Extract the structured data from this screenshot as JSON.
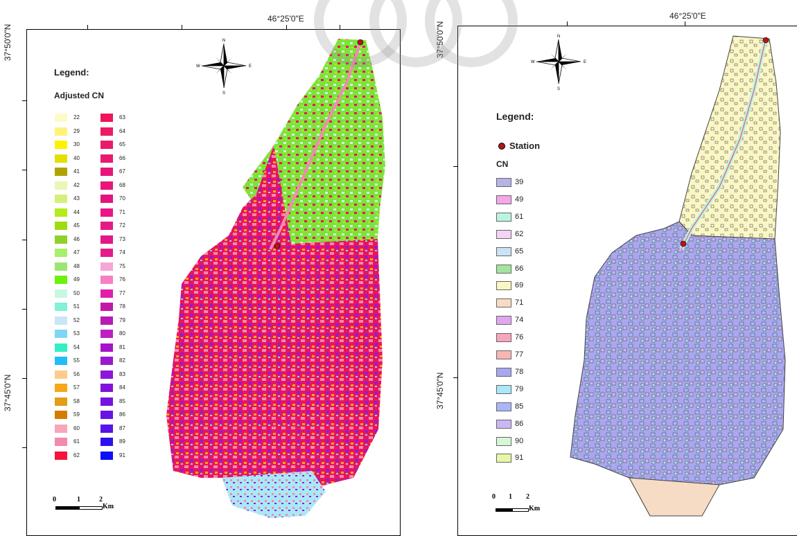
{
  "left_map": {
    "coord_lon": "46°25'0\"E",
    "coord_lat_top": "37°50'0\"N",
    "coord_lat_bottom": "37°45'0\"N",
    "legend_title": "Legend:",
    "legend_subtitle": "Adjusted CN",
    "classes_col1": [
      {
        "value": "22",
        "color": "#fefac8"
      },
      {
        "value": "29",
        "color": "#fef37a"
      },
      {
        "value": "30",
        "color": "#fdf200"
      },
      {
        "value": "40",
        "color": "#e3df00"
      },
      {
        "value": "41",
        "color": "#b0a300"
      },
      {
        "value": "42",
        "color": "#e8f7b3"
      },
      {
        "value": "43",
        "color": "#d4f07a"
      },
      {
        "value": "44",
        "color": "#b2ec1a"
      },
      {
        "value": "45",
        "color": "#9edc11"
      },
      {
        "value": "46",
        "color": "#8fd12c"
      },
      {
        "value": "47",
        "color": "#a8ef6b"
      },
      {
        "value": "48",
        "color": "#9be673"
      },
      {
        "value": "49",
        "color": "#6cf20c"
      },
      {
        "value": "50",
        "color": "#c7f7e0"
      },
      {
        "value": "51",
        "color": "#81f2d6"
      },
      {
        "value": "52",
        "color": "#c8e6f6"
      },
      {
        "value": "53",
        "color": "#7fd6f4"
      },
      {
        "value": "54",
        "color": "#32efc4"
      },
      {
        "value": "55",
        "color": "#23bdf8"
      },
      {
        "value": "56",
        "color": "#fdcc8a"
      },
      {
        "value": "57",
        "color": "#f7a71a"
      },
      {
        "value": "58",
        "color": "#e39d18"
      },
      {
        "value": "59",
        "color": "#d77b00"
      },
      {
        "value": "60",
        "color": "#f7a5ba"
      },
      {
        "value": "61",
        "color": "#f28ab0"
      },
      {
        "value": "62",
        "color": "#f4133a"
      }
    ],
    "classes_col2": [
      {
        "value": "63",
        "color": "#ef155b"
      },
      {
        "value": "64",
        "color": "#ec1a64"
      },
      {
        "value": "65",
        "color": "#ea1a6a"
      },
      {
        "value": "66",
        "color": "#e81a72"
      },
      {
        "value": "67",
        "color": "#e71579"
      },
      {
        "value": "68",
        "color": "#e71678"
      },
      {
        "value": "70",
        "color": "#e5137f"
      },
      {
        "value": "71",
        "color": "#eb1587"
      },
      {
        "value": "72",
        "color": "#e41b86"
      },
      {
        "value": "73",
        "color": "#e21788"
      },
      {
        "value": "74",
        "color": "#e41a8d"
      },
      {
        "value": "75",
        "color": "#f5a6d7"
      },
      {
        "value": "76",
        "color": "#f77fc6"
      },
      {
        "value": "77",
        "color": "#e01ea9"
      },
      {
        "value": "78",
        "color": "#c418a6"
      },
      {
        "value": "79",
        "color": "#b91ab4"
      },
      {
        "value": "80",
        "color": "#c01ec5"
      },
      {
        "value": "81",
        "color": "#a414cb"
      },
      {
        "value": "82",
        "color": "#9a19d0"
      },
      {
        "value": "83",
        "color": "#8e16d8"
      },
      {
        "value": "84",
        "color": "#8113d9"
      },
      {
        "value": "85",
        "color": "#7613e0"
      },
      {
        "value": "86",
        "color": "#6a12e5"
      },
      {
        "value": "87",
        "color": "#5713ea"
      },
      {
        "value": "89",
        "color": "#2c12ef"
      },
      {
        "value": "91",
        "color": "#0b10f6"
      }
    ],
    "scale_labels": [
      "0",
      "1",
      "2",
      "Km"
    ]
  },
  "right_map": {
    "coord_lon": "46°25'0\"E",
    "coord_lat_top": "37°50'0\"N",
    "coord_lat_bottom": "37°45'0\"N",
    "legend_title": "Legend:",
    "station_label": "Station",
    "cn_label": "CN",
    "classes": [
      {
        "value": "39",
        "color": "#b6b3e8"
      },
      {
        "value": "49",
        "color": "#f5a7e6"
      },
      {
        "value": "61",
        "color": "#b9f5e0"
      },
      {
        "value": "62",
        "color": "#f5d3f5"
      },
      {
        "value": "65",
        "color": "#cce3f5"
      },
      {
        "value": "66",
        "color": "#a3e4a0"
      },
      {
        "value": "69",
        "color": "#fbf7c4"
      },
      {
        "value": "71",
        "color": "#f6dcc4"
      },
      {
        "value": "74",
        "color": "#e0a7f0"
      },
      {
        "value": "76",
        "color": "#f7a7bd"
      },
      {
        "value": "77",
        "color": "#f8b7b2"
      },
      {
        "value": "78",
        "color": "#a8a7f0"
      },
      {
        "value": "79",
        "color": "#a8e9f8"
      },
      {
        "value": "85",
        "color": "#a9b7f7"
      },
      {
        "value": "86",
        "color": "#cbb7f2"
      },
      {
        "value": "90",
        "color": "#d6f7d5"
      },
      {
        "value": "91",
        "color": "#e6f7a7"
      }
    ],
    "scale_labels": [
      "0",
      "1",
      "2",
      "Km"
    ]
  },
  "compass": {
    "n": "N",
    "s": "S",
    "e": "E",
    "w": "W"
  },
  "colors": {
    "station": "#b01818",
    "boundary": "#444444",
    "river": "#e85a8a"
  }
}
